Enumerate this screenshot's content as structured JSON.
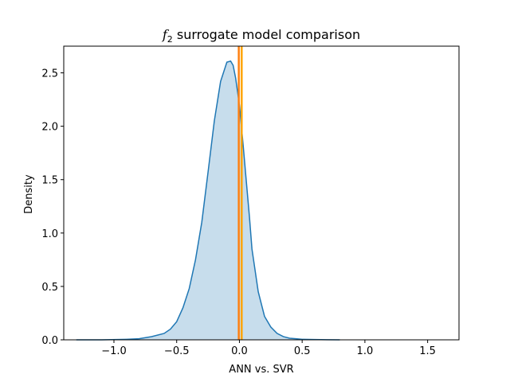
{
  "chart_data": {
    "type": "area",
    "title_symbol": "f",
    "title_subscript": "2",
    "title_rest": " surrogate model comparison",
    "xlabel": "ANN vs. SVR",
    "ylabel": "Density",
    "xlim": [
      -1.4,
      1.75
    ],
    "ylim": [
      0,
      2.75
    ],
    "xticks": [
      -1.0,
      -0.5,
      0.0,
      0.5,
      1.0,
      1.5
    ],
    "xtick_labels": [
      "−1.0",
      "−0.5",
      "0.0",
      "0.5",
      "1.0",
      "1.5"
    ],
    "yticks": [
      0.0,
      0.5,
      1.0,
      1.5,
      2.0,
      2.5
    ],
    "ytick_labels": [
      "0.0",
      "0.5",
      "1.0",
      "1.5",
      "2.0",
      "2.5"
    ],
    "grid": false,
    "line_color": "#1f77b4",
    "fill_color": "#1f77b4",
    "fill_opacity": 0.25,
    "density": {
      "x": [
        -1.3,
        -1.1,
        -0.9,
        -0.8,
        -0.7,
        -0.6,
        -0.55,
        -0.5,
        -0.45,
        -0.4,
        -0.35,
        -0.3,
        -0.25,
        -0.2,
        -0.15,
        -0.1,
        -0.07,
        -0.05,
        -0.03,
        0.0,
        0.03,
        0.05,
        0.08,
        0.1,
        0.15,
        0.2,
        0.25,
        0.3,
        0.35,
        0.4,
        0.45,
        0.5,
        0.6,
        0.7,
        0.8
      ],
      "y": [
        0.0,
        0.0,
        0.005,
        0.01,
        0.03,
        0.06,
        0.1,
        0.17,
        0.3,
        0.48,
        0.75,
        1.1,
        1.57,
        2.05,
        2.42,
        2.6,
        2.61,
        2.57,
        2.45,
        2.2,
        1.82,
        1.55,
        1.15,
        0.85,
        0.45,
        0.22,
        0.12,
        0.06,
        0.03,
        0.015,
        0.01,
        0.005,
        0.003,
        0.001,
        0.0
      ]
    },
    "vlines": [
      {
        "x": -0.005,
        "color": "#ff7f0e"
      },
      {
        "x": 0.018,
        "color": "#ffa500"
      }
    ]
  }
}
